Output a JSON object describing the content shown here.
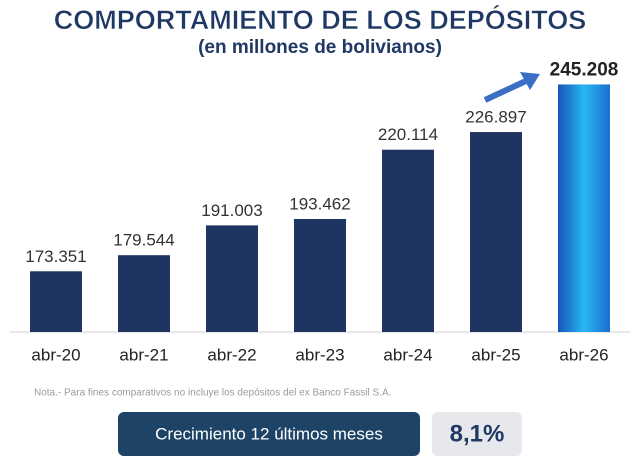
{
  "chart_data": {
    "type": "bar",
    "title": "COMPORTAMIENTO DE LOS DEPÓSITOS",
    "subtitle": "(en millones de bolivianos)",
    "categories": [
      "abr-20",
      "abr-21",
      "abr-22",
      "abr-23",
      "abr-24",
      "abr-25",
      "abr-26"
    ],
    "values": [
      173351,
      179544,
      191003,
      193462,
      220114,
      226897,
      245208
    ],
    "value_labels": [
      "173.351",
      "179.544",
      "191.003",
      "193.462",
      "220.114",
      "226.897",
      "245.208"
    ],
    "colors": [
      "#1f3561",
      "#1f3561",
      "#1f3561",
      "#1f3561",
      "#1f3561",
      "#1f3561",
      "#1aa3ea"
    ],
    "ylim": [
      150000,
      260000
    ],
    "note": "Nota.- Para fines comparativos no incluye los depósitos del ex Banco Fassil S.A.",
    "growth_label": "Crecimiento 12 últimos meses",
    "growth_value": "8,1%"
  }
}
